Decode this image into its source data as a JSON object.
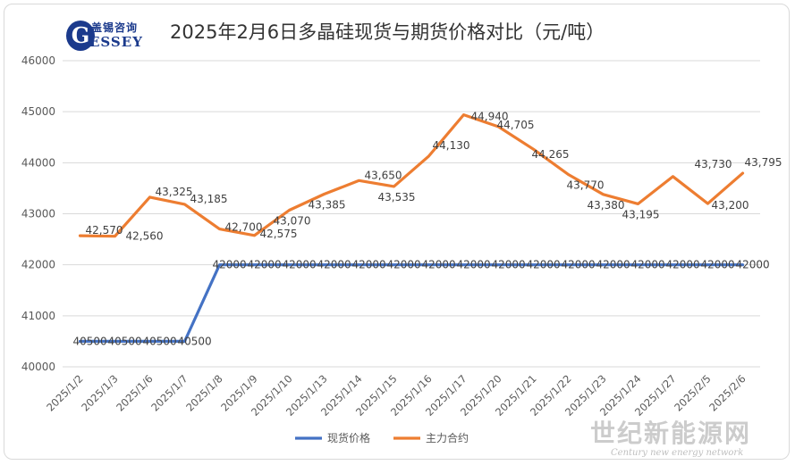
{
  "logo": {
    "cn": "盖锡咨询",
    "letter": "G",
    "en": "ESSEY"
  },
  "chart_data": {
    "type": "line",
    "title": "2025年2月6日多晶硅现货与期货价格对比（元/吨）",
    "xlabel": "",
    "ylabel": "",
    "ylim": [
      40000,
      46000
    ],
    "yticks": [
      40000,
      41000,
      42000,
      43000,
      44000,
      45000,
      46000
    ],
    "grid": true,
    "legend": "bottom",
    "categories": [
      "2025/1/2",
      "2025/1/3",
      "2025/1/6",
      "2025/1/7",
      "2025/1/8",
      "2025/1/9",
      "2025/1/10",
      "2025/1/13",
      "2025/1/14",
      "2025/1/15",
      "2025/1/16",
      "2025/1/17",
      "2025/1/20",
      "2025/1/21",
      "2025/1/22",
      "2025/1/23",
      "2025/1/24",
      "2025/1/27",
      "2025/2/5",
      "2025/2/6"
    ],
    "series": [
      {
        "name": "现货价格",
        "color": "#4472c4",
        "values": [
          40500,
          40500,
          40500,
          40500,
          42000,
          42000,
          42000,
          42000,
          42000,
          42000,
          42000,
          42000,
          42000,
          42000,
          42000,
          42000,
          42000,
          42000,
          42000,
          42000
        ],
        "labels": [
          "40500",
          "40500",
          "40500",
          "40500",
          "42000",
          "42000",
          "42000",
          "42000",
          "42000",
          "42000",
          "42000",
          "42000",
          "42000",
          "42000",
          "42000",
          "42000",
          "42000",
          "42000",
          "42000",
          "42000"
        ]
      },
      {
        "name": "主力合约",
        "color": "#ed7d31",
        "values": [
          42570,
          42560,
          43325,
          43185,
          42700,
          42575,
          43070,
          43385,
          43650,
          43535,
          44130,
          44940,
          44705,
          44265,
          43770,
          43380,
          43195,
          43730,
          43200,
          43795
        ],
        "labels": [
          "42,570",
          "42,560",
          "43,325",
          "43,185",
          "42,700",
          "42,575",
          "43,070",
          "43,385",
          "43,650",
          "43,535",
          "44,130",
          "44,940",
          "44,705",
          "44,265",
          "43,770",
          "43,380",
          "43,195",
          "43,730",
          "43,200",
          "43,795"
        ]
      }
    ]
  },
  "watermark": {
    "cn": "世纪新能源网",
    "en": "Century new energy network"
  }
}
